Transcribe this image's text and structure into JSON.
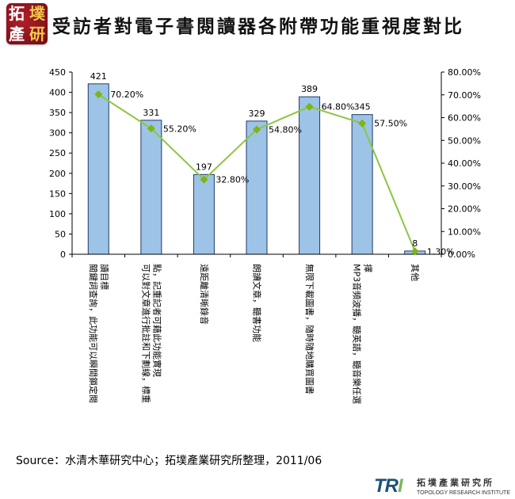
{
  "logo": {
    "chars": [
      "拓",
      "墣",
      "產",
      "研"
    ]
  },
  "title": "受訪者對電子書閱讀器各附帶功能重視度對比",
  "source": "Source：水清木華研究中心；拓墣產業研究所整理，2011/06",
  "footer_logo": {
    "mark": "TRI",
    "name": "拓墣產業研究所",
    "english": "TOPOLOGY RESEARCH INSTITUTE"
  },
  "colors": {
    "bar_fill": "#9dc3e6",
    "bar_stroke": "#1f3b6b",
    "line": "#8dc63f",
    "marker": "#7cb518"
  },
  "chart_data": {
    "type": "bar",
    "categories": [
      [
        "關鍵詞查詢，此功能可以瞬間鎖定閱",
        "讀目標"
      ],
      [
        "可以對文章進行批註和下劃線，標重",
        "點，記重記者可藉此功能實現"
      ],
      [
        "遠距離清晰錄音"
      ],
      [
        "朗讀文章，聽書功能"
      ],
      [
        "無限下載圖書，隨時隨地購買圖書"
      ],
      [
        "MP3音頻波播，聽英語，聽音樂任選",
        "擇"
      ],
      [
        "其他"
      ]
    ],
    "series": [
      {
        "type": "bar",
        "axis": "left",
        "values": [
          421,
          331,
          197,
          329,
          389,
          345,
          8
        ],
        "labels": [
          "421",
          "331",
          "197",
          "329",
          "389",
          "345",
          "8"
        ]
      },
      {
        "type": "line",
        "axis": "right",
        "values": [
          70.2,
          55.2,
          32.8,
          54.8,
          64.8,
          57.5,
          1.3
        ],
        "labels": [
          "70.20%",
          "55.20%",
          "32.80%",
          "54.80%",
          "64.80%",
          "57.50%",
          "1.30%"
        ]
      }
    ],
    "y_left": {
      "min": 0,
      "max": 450,
      "ticks": [
        "0",
        "50",
        "100",
        "150",
        "200",
        "250",
        "300",
        "350",
        "400",
        "450"
      ]
    },
    "y_right": {
      "min": 0,
      "max": 80,
      "ticks": [
        "0.00%",
        "10.00%",
        "20.00%",
        "30.00%",
        "40.00%",
        "50.00%",
        "60.00%",
        "70.00%",
        "80.00%"
      ]
    },
    "grid": false,
    "legend": "none"
  }
}
